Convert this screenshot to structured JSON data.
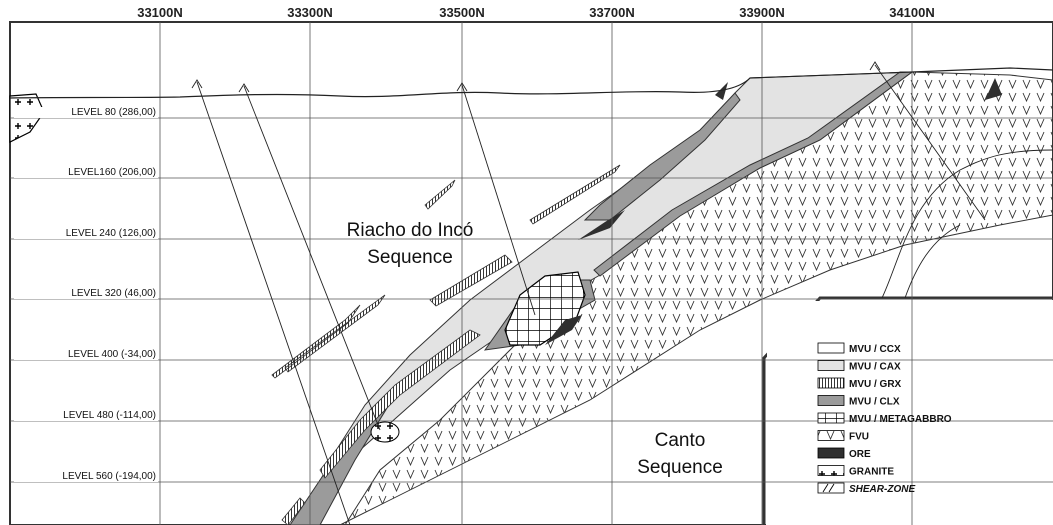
{
  "northings": [
    "33100N",
    "33300N",
    "33500N",
    "33700N",
    "33900N",
    "34100N"
  ],
  "levels": [
    "LEVEL 80 (286,00)",
    "LEVEL160 (206,00)",
    "LEVEL 240 (126,00)",
    "LEVEL 320 (46,00)",
    "LEVEL 400 (-34,00)",
    "LEVEL 480 (-114,00)",
    "LEVEL 560 (-194,00)"
  ],
  "sequences": {
    "riacho_line1": "Riacho do Incó",
    "riacho_line2": "Sequence",
    "canto_line1": "Canto",
    "canto_line2": "Sequence"
  },
  "legend": [
    {
      "key": "ccx",
      "label": "MVU / CCX",
      "fill": "#ffffff"
    },
    {
      "key": "cax",
      "label": "MVU / CAX",
      "fill": "#e3e3e3"
    },
    {
      "key": "grx",
      "label": "MVU / GRX",
      "fill": "vertical-hatch"
    },
    {
      "key": "clx",
      "label": "MVU / CLX",
      "fill": "#9b9b9b"
    },
    {
      "key": "metagabbro",
      "label": "MVU / METAGABBRO",
      "fill": "grid-pattern"
    },
    {
      "key": "fvu",
      "label": "FVU",
      "fill": "v-pattern"
    },
    {
      "key": "ore",
      "label": "ORE",
      "fill": "#2f2f2f"
    },
    {
      "key": "granite",
      "label": "GRANITE",
      "fill": "cross-pattern"
    },
    {
      "key": "shear",
      "label": "SHEAR-ZONE",
      "fill": "diagonal-lines"
    }
  ],
  "colors": {
    "cax": "#e3e3e3",
    "clx": "#9b9b9b",
    "ore": "#2f2f2f",
    "grid": "#555555",
    "frame": "#333333"
  }
}
